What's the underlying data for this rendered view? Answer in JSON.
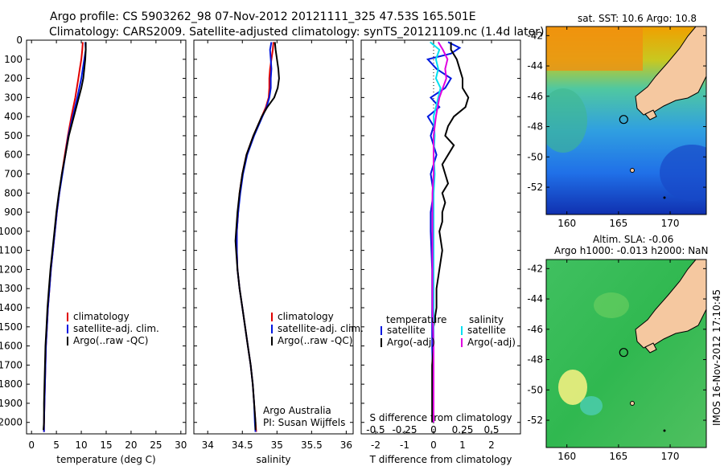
{
  "header": {
    "line1": "Argo profile: CS 5903262_98 07-Nov-2012 20121111_325 47.53S 165.501E",
    "line2": "Climatology: CARS2009. Satellite-adjusted climatology: synTS_20121109.nc (1.4d later)"
  },
  "side_stamp": "IMOS 16-Nov-2012 17:10:45",
  "colors": {
    "climatology": "#e00000",
    "satellite": "#0018e0",
    "argo": "#000000",
    "sal_satellite": "#00e0f0",
    "sal_argo": "#e000e0",
    "land": "#f5c8a0"
  },
  "chart_data": [
    {
      "type": "line",
      "name": "temperature-profile",
      "xlabel": "temperature (deg C)",
      "ylabel": "",
      "xlim": [
        -1,
        31
      ],
      "ylim": [
        2060,
        0
      ],
      "xticks": [
        0,
        5,
        10,
        15,
        20,
        25,
        30
      ],
      "yticks": [
        0,
        100,
        200,
        300,
        400,
        500,
        600,
        700,
        800,
        900,
        1000,
        1100,
        1200,
        1300,
        1400,
        1500,
        1600,
        1700,
        1800,
        1900,
        2000
      ],
      "legend": [
        "climatology",
        "satellite-adj. clim.",
        "Argo(..raw -QC)"
      ],
      "legend_loc": "lower-right",
      "series": [
        {
          "name": "climatology",
          "color": "#e00000",
          "depth": [
            10,
            50,
            100,
            150,
            200,
            250,
            300,
            400,
            500,
            600,
            700,
            800,
            900,
            1000,
            1100,
            1200,
            1300,
            1400,
            1500,
            1600,
            1700,
            1800,
            1900,
            2000,
            2050
          ],
          "values": [
            10.3,
            10.2,
            10.0,
            9.7,
            9.4,
            9.1,
            8.8,
            8.0,
            7.3,
            6.7,
            6.1,
            5.6,
            5.1,
            4.7,
            4.3,
            3.9,
            3.6,
            3.3,
            3.1,
            2.9,
            2.8,
            2.7,
            2.6,
            2.5,
            2.5
          ]
        },
        {
          "name": "satellite-adj. clim.",
          "color": "#0018e0",
          "depth": [
            10,
            50,
            100,
            150,
            200,
            250,
            300,
            400,
            500,
            600,
            700,
            800,
            900,
            1000,
            1100,
            1200,
            1300,
            1400,
            1500,
            1600,
            1700,
            1800,
            1900,
            2000,
            2050
          ],
          "values": [
            10.8,
            10.9,
            10.6,
            10.3,
            10.0,
            9.6,
            9.2,
            8.3,
            7.4,
            6.8,
            6.2,
            5.6,
            5.1,
            4.7,
            4.3,
            3.9,
            3.6,
            3.3,
            3.1,
            2.9,
            2.8,
            2.7,
            2.6,
            2.5,
            2.5
          ]
        },
        {
          "name": "Argo(..raw -QC)",
          "color": "#000000",
          "depth": [
            10,
            50,
            100,
            150,
            200,
            250,
            300,
            400,
            500,
            600,
            700,
            800,
            900,
            1000,
            1100,
            1200,
            1300,
            1400,
            1500,
            1600,
            1700,
            1800,
            1900,
            2000,
            2040
          ],
          "values": [
            10.9,
            10.9,
            10.8,
            10.6,
            10.4,
            10.0,
            9.5,
            8.5,
            7.5,
            6.8,
            6.1,
            5.5,
            5.0,
            4.6,
            4.2,
            3.8,
            3.5,
            3.2,
            3.0,
            2.8,
            2.7,
            2.6,
            2.5,
            2.5,
            2.4
          ]
        }
      ]
    },
    {
      "type": "line",
      "name": "salinity-profile",
      "xlabel": "salinity",
      "xlim": [
        33.8,
        36.1
      ],
      "ylim": [
        2060,
        0
      ],
      "xticks": [
        34,
        34.5,
        35,
        35.5,
        36
      ],
      "legend": [
        "climatology",
        "satellite-adj. clim.",
        "Argo(..raw -QC)"
      ],
      "legend_loc": "lower-right",
      "annotation": [
        "Argo Australia",
        "PI: Susan Wijffels"
      ],
      "series": [
        {
          "name": "climatology",
          "color": "#e00000",
          "depth": [
            10,
            50,
            100,
            150,
            200,
            250,
            300,
            350,
            400,
            500,
            600,
            700,
            800,
            900,
            1000,
            1100,
            1200,
            1300,
            1400,
            1500,
            1600,
            1700,
            1800,
            1900,
            2000,
            2050
          ],
          "values": [
            34.95,
            34.94,
            34.92,
            34.9,
            34.89,
            34.89,
            34.88,
            34.84,
            34.78,
            34.66,
            34.56,
            34.5,
            34.46,
            34.44,
            34.42,
            34.42,
            34.43,
            34.46,
            34.5,
            34.54,
            34.58,
            34.62,
            34.65,
            34.67,
            34.69,
            34.7
          ]
        },
        {
          "name": "satellite-adj. clim.",
          "color": "#0018e0",
          "depth": [
            10,
            50,
            100,
            150,
            200,
            250,
            300,
            350,
            400,
            500,
            600,
            700,
            800,
            900,
            1000,
            1100,
            1200,
            1300,
            1400,
            1500,
            1600,
            1700,
            1800,
            1900,
            2000,
            2050
          ],
          "values": [
            34.92,
            34.9,
            34.91,
            34.92,
            34.91,
            34.91,
            34.89,
            34.85,
            34.79,
            34.67,
            34.57,
            34.51,
            34.47,
            34.44,
            34.42,
            34.42,
            34.43,
            34.46,
            34.5,
            34.54,
            34.58,
            34.62,
            34.65,
            34.67,
            34.68,
            34.69
          ]
        },
        {
          "name": "Argo(..raw -QC)",
          "color": "#000000",
          "depth": [
            10,
            50,
            100,
            150,
            200,
            250,
            300,
            350,
            400,
            500,
            600,
            700,
            800,
            900,
            1000,
            1050,
            1100,
            1200,
            1300,
            1400,
            1500,
            1600,
            1700,
            1800,
            1900,
            2000,
            2040
          ],
          "values": [
            34.97,
            34.98,
            35.0,
            35.02,
            35.03,
            35.01,
            34.96,
            34.86,
            34.78,
            34.66,
            34.56,
            34.5,
            34.46,
            34.43,
            34.41,
            34.4,
            34.41,
            34.43,
            34.46,
            34.5,
            34.54,
            34.58,
            34.62,
            34.65,
            34.67,
            34.69,
            34.69
          ]
        }
      ]
    },
    {
      "type": "line",
      "name": "difference-profile",
      "title": "S difference from climatology",
      "xlabel": "T difference from climatology",
      "xlim_T": [
        -2.5,
        3.0
      ],
      "xticks_T": [
        -2,
        -1,
        0,
        1,
        2
      ],
      "xticks_S_labels": [
        "-0.5",
        "-0.25",
        "0",
        "0.25",
        "0.5"
      ],
      "xticks_S_values": [
        -0.5,
        -0.25,
        0,
        0.25,
        0.5
      ],
      "ylim": [
        2060,
        0
      ],
      "legend_temperature_title": "temperature",
      "legend_salinity_title": "salinity",
      "legend_temperature": [
        "satellite",
        "Argo(-adj)"
      ],
      "legend_salinity": [
        "satellite",
        "Argo(-adj)"
      ],
      "series": [
        {
          "name": "T satellite",
          "color": "#0018e0",
          "depth": [
            10,
            40,
            70,
            100,
            150,
            200,
            250,
            300,
            350,
            400,
            450,
            500,
            600,
            700,
            800,
            900,
            1000,
            1200,
            1400,
            1600,
            1800,
            2000
          ],
          "values": [
            0.5,
            0.9,
            0.6,
            -0.2,
            0.1,
            0.6,
            0.4,
            -0.1,
            0.2,
            -0.2,
            0.0,
            -0.1,
            0.1,
            -0.1,
            0.0,
            -0.1,
            -0.1,
            -0.05,
            -0.05,
            -0.05,
            -0.02,
            0.0
          ]
        },
        {
          "name": "T Argo(-adj)",
          "color": "#000000",
          "depth": [
            10,
            50,
            100,
            150,
            200,
            250,
            300,
            350,
            400,
            450,
            500,
            550,
            600,
            650,
            700,
            750,
            800,
            850,
            900,
            950,
            1000,
            1100,
            1200,
            1300,
            1400,
            1500,
            1600,
            1700,
            1800,
            1900,
            2000
          ],
          "values": [
            0.6,
            0.6,
            0.8,
            0.9,
            1.0,
            1.0,
            1.2,
            1.1,
            0.7,
            0.5,
            0.4,
            0.7,
            0.5,
            0.3,
            0.4,
            0.5,
            0.3,
            0.4,
            0.3,
            0.3,
            0.2,
            0.3,
            0.2,
            0.1,
            0.1,
            0.0,
            0.0,
            -0.05,
            -0.05,
            -0.05,
            -0.05
          ]
        },
        {
          "name": "S satellite",
          "color": "#00e0f0",
          "depth": [
            10,
            50,
            100,
            150,
            200,
            250,
            300,
            400,
            500,
            600,
            700,
            800,
            900,
            1000,
            1200,
            1400,
            1600,
            1800,
            2000
          ],
          "values": [
            -0.03,
            0.05,
            0.02,
            0.04,
            0.02,
            0.06,
            0.04,
            0.0,
            0.01,
            0.0,
            0.01,
            0.0,
            0.0,
            0.0,
            0.0,
            0.0,
            0.0,
            0.0,
            0.0
          ]
        },
        {
          "name": "S Argo(-adj)",
          "color": "#e000e0",
          "depth": [
            10,
            50,
            100,
            150,
            200,
            250,
            300,
            400,
            500,
            600,
            700,
            800,
            900,
            1000,
            1200,
            1400,
            1600,
            1800,
            2000
          ],
          "values": [
            0.04,
            0.08,
            0.12,
            0.1,
            0.11,
            0.08,
            0.05,
            0.02,
            0.0,
            0.0,
            0.0,
            -0.01,
            -0.01,
            -0.01,
            -0.01,
            -0.01,
            0.0,
            0.0,
            0.0
          ]
        }
      ]
    },
    {
      "type": "heatmap",
      "name": "sst-map",
      "title": "sat. SST: 10.6 Argo: 10.8",
      "xticks": [
        160,
        165,
        170
      ],
      "yticks": [
        -42,
        -44,
        -46,
        -48,
        -50,
        -52
      ],
      "xlim": [
        158,
        173.5
      ],
      "ylim": [
        -53.8,
        -41.4
      ],
      "marker": {
        "lon": 165.501,
        "lat": -47.53
      }
    },
    {
      "type": "heatmap",
      "name": "sla-map",
      "title_line1": "Altim. SLA: -0.06",
      "title_line2": "Argo h1000: -0.013 h2000: NaN",
      "xticks": [
        160,
        165,
        170
      ],
      "yticks": [
        -42,
        -44,
        -46,
        -48,
        -50,
        -52
      ],
      "xlim": [
        158,
        173.5
      ],
      "ylim": [
        -53.8,
        -41.4
      ],
      "marker": {
        "lon": 165.501,
        "lat": -47.53
      }
    }
  ]
}
